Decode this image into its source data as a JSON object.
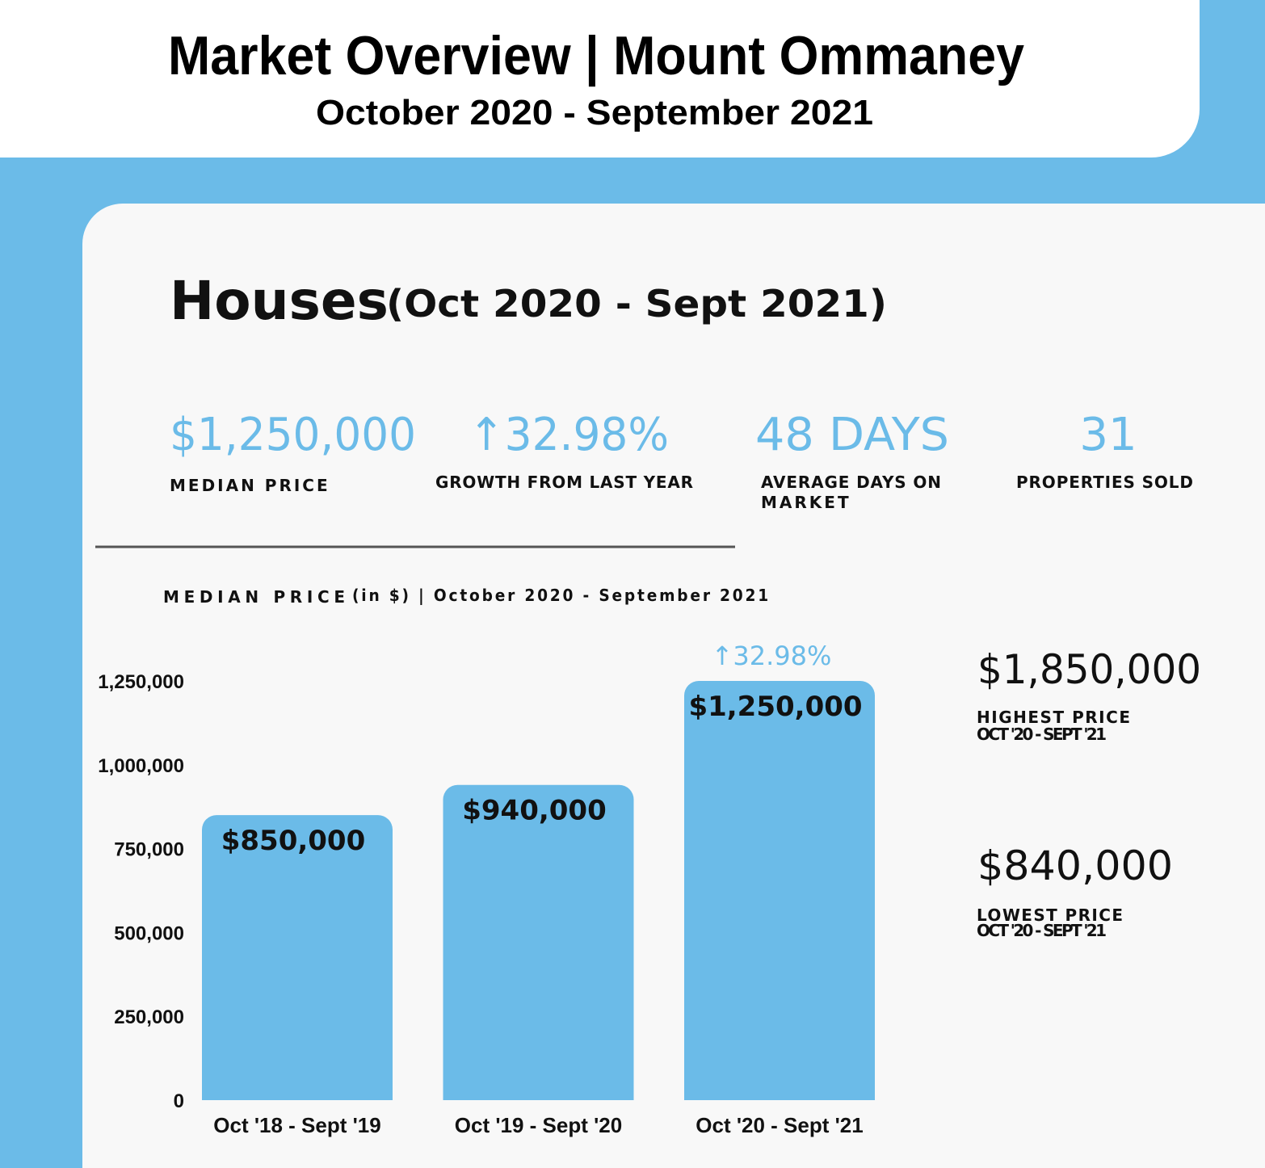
{
  "header": {
    "title": "Market Overview | Mount Ommaney",
    "subtitle": "October 2020 - September 2021"
  },
  "section": {
    "title": "Houses",
    "period": "(Oct 2020 - Sept 2021)"
  },
  "stats": [
    {
      "value": "$1,250,000",
      "label": "MEDIAN PRICE"
    },
    {
      "value": "↑32.98%",
      "label": "GROWTH FROM LAST YEAR"
    },
    {
      "value": "48 DAYS",
      "label": "AVERAGE DAYS ON",
      "label2": "MARKET"
    },
    {
      "value": "31",
      "label": "PROPERTIES SOLD"
    }
  ],
  "chart_data": {
    "type": "bar",
    "title": "MEDIAN PRICE",
    "subtitle": "(in $) | October 2020 - September 2021",
    "categories": [
      "Oct '18 - Sept '19",
      "Oct '19 - Sept '20",
      "Oct '20 - Sept '21"
    ],
    "values": [
      850000,
      940000,
      1250000
    ],
    "value_labels": [
      "$850,000",
      "$940,000",
      "$1,250,000"
    ],
    "color": "#6bbbe8",
    "ylim": [
      0,
      1250000
    ],
    "yticks": [
      0,
      {
        "value": 250000,
        "label": "250,000"
      },
      {
        "value": 500000,
        "label": "500,000"
      },
      {
        "value": 750000,
        "label": "750,000"
      },
      {
        "value": 1000000,
        "label": "1,000,000"
      },
      {
        "value": 1250000,
        "label": "1,250,000"
      }
    ],
    "annotation": "↑32.98%"
  },
  "side": [
    {
      "value": "$1,850,000",
      "label": "HIGHEST PRICE",
      "period": "OCT '20 - SEPT '21"
    },
    {
      "value": "$840,000",
      "label": "LOWEST PRICE",
      "period": "OCT '20 - SEPT '21"
    }
  ]
}
